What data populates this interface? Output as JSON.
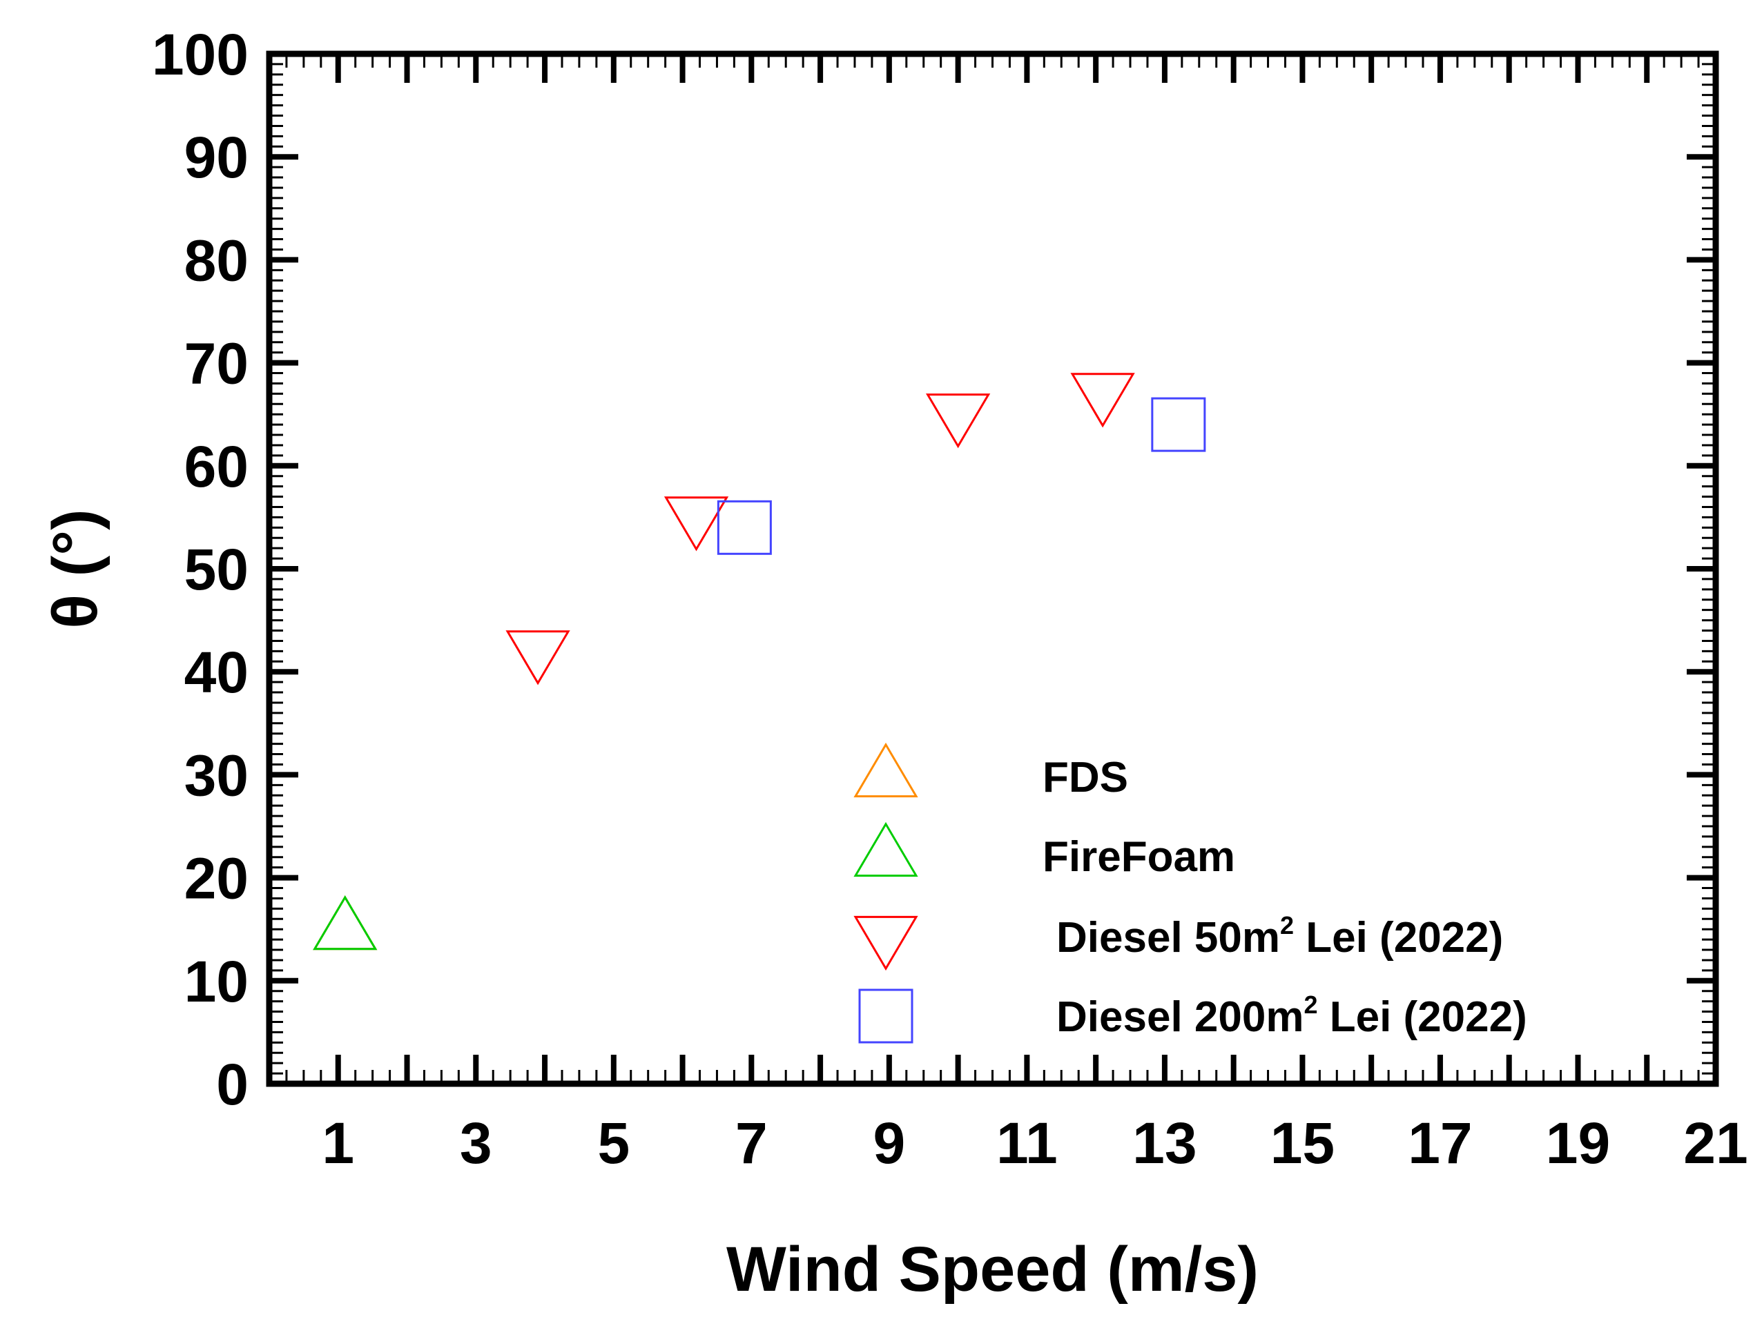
{
  "chart_data": {
    "type": "scatter",
    "title": "",
    "xlabel": "Wind Speed (m/s)",
    "ylabel": "θ (°)",
    "xlim": [
      0,
      21
    ],
    "ylim": [
      0,
      100
    ],
    "x_ticks": [
      1,
      3,
      5,
      7,
      9,
      11,
      13,
      15,
      17,
      19,
      21
    ],
    "y_ticks": [
      0,
      10,
      20,
      30,
      40,
      50,
      60,
      70,
      80,
      90,
      100
    ],
    "grid": false,
    "legend_position": "lower-right",
    "series": [
      {
        "name": "FDS",
        "marker": "triangle-up",
        "color": "#ff8c00",
        "points": [
          {
            "x": 1.1,
            "y": 15
          }
        ]
      },
      {
        "name": "FireFoam",
        "marker": "triangle-up",
        "color": "#00cc00",
        "points": [
          {
            "x": 1.1,
            "y": 15
          }
        ]
      },
      {
        "name": "Diesel 50m2 Lei (2022)",
        "label_main": "Diesel 50m",
        "label_sup": "2",
        "label_rest": " Lei (2022)",
        "marker": "triangle-down",
        "color": "#ff0000",
        "points": [
          {
            "x": 3.9,
            "y": 42
          },
          {
            "x": 6.2,
            "y": 55
          },
          {
            "x": 10.0,
            "y": 65
          },
          {
            "x": 12.1,
            "y": 67
          }
        ]
      },
      {
        "name": "Diesel 200m2 Lei (2022)",
        "label_main": "Diesel 200m",
        "label_sup": "2",
        "label_rest": " Lei (2022)",
        "marker": "square",
        "color": "#4444ff",
        "points": [
          {
            "x": 6.9,
            "y": 54
          },
          {
            "x": 13.2,
            "y": 64
          }
        ]
      }
    ]
  }
}
